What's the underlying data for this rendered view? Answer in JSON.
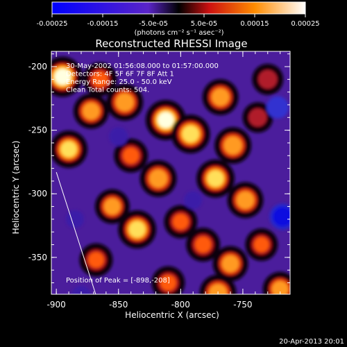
{
  "colorbar": {
    "ticks": [
      "-0.00025",
      "-0.00015",
      "-5.0e-05",
      "5.0e-05",
      "0.00015",
      "0.00025"
    ],
    "unit_label": "(photons cm⁻² s⁻¹ asec⁻²)",
    "range": [
      -0.00025,
      0.00025
    ]
  },
  "chart_data": {
    "type": "heatmap",
    "title": "Reconstructed RHESSI Image",
    "xlabel": "Heliocentric X (arcsec)",
    "ylabel": "Heliocentric Y (arcsec)",
    "xlim": [
      -904,
      -712
    ],
    "ylim": [
      -379,
      -188
    ],
    "xticks": [
      -900,
      -850,
      -800,
      -750
    ],
    "yticks": [
      -200,
      -250,
      -300,
      -350
    ],
    "annotations": [
      "30-May-2002 01:56:08.000 to 01:57:00.000",
      "Detectors: 4F 5F 6F 7F 8F  Att 1",
      "Energy Range: 25.0 - 50.0 keV",
      "Clean     Total counts: 504."
    ],
    "peak_label": "Position of Peak = [-898,-208]",
    "peak": [
      -898,
      -208
    ],
    "limb_line": [
      [
        -900,
        -283
      ],
      [
        -868,
        -380
      ]
    ],
    "blobs": [
      {
        "x": -812,
        "y": -242,
        "v": 1.0
      },
      {
        "x": -792,
        "y": -253,
        "v": 0.9
      },
      {
        "x": -845,
        "y": -228,
        "v": 0.75
      },
      {
        "x": -872,
        "y": -235,
        "v": 0.65
      },
      {
        "x": -865,
        "y": -210,
        "v": 0.55
      },
      {
        "x": -890,
        "y": -265,
        "v": 0.8
      },
      {
        "x": -895,
        "y": -208,
        "v": 1.0
      },
      {
        "x": -768,
        "y": -224,
        "v": 0.7
      },
      {
        "x": -758,
        "y": -262,
        "v": 0.75
      },
      {
        "x": -772,
        "y": -288,
        "v": 0.85
      },
      {
        "x": -748,
        "y": -305,
        "v": 0.7
      },
      {
        "x": -818,
        "y": -288,
        "v": 0.75
      },
      {
        "x": -840,
        "y": -270,
        "v": 0.55
      },
      {
        "x": -855,
        "y": -310,
        "v": 0.6
      },
      {
        "x": -835,
        "y": -328,
        "v": 0.85
      },
      {
        "x": -800,
        "y": -322,
        "v": 0.5
      },
      {
        "x": -782,
        "y": -340,
        "v": 0.55
      },
      {
        "x": -760,
        "y": -355,
        "v": 0.65
      },
      {
        "x": -770,
        "y": -378,
        "v": 0.75
      },
      {
        "x": -735,
        "y": -340,
        "v": 0.45
      },
      {
        "x": -720,
        "y": -375,
        "v": 0.6
      },
      {
        "x": -868,
        "y": -352,
        "v": 0.5
      },
      {
        "x": -810,
        "y": -370,
        "v": 0.5
      },
      {
        "x": -730,
        "y": -210,
        "v": 0.35
      },
      {
        "x": -738,
        "y": -240,
        "v": 0.3
      },
      {
        "x": -885,
        "y": -320,
        "v": -0.3
      },
      {
        "x": -718,
        "y": -318,
        "v": -0.9
      },
      {
        "x": -722,
        "y": -232,
        "v": -0.6
      },
      {
        "x": -880,
        "y": -380,
        "v": -0.4
      },
      {
        "x": -850,
        "y": -255,
        "v": -0.35
      },
      {
        "x": -790,
        "y": -305,
        "v": -0.3
      }
    ]
  },
  "footer": {
    "timestamp": "20-Apr-2013 20:01"
  }
}
